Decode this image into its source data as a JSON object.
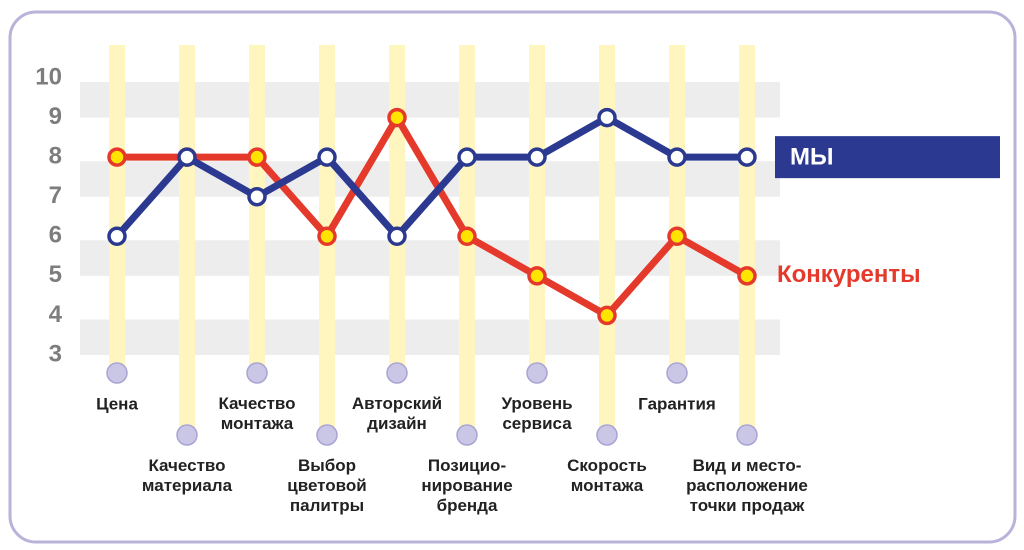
{
  "chart_data": {
    "type": "line",
    "categories": [
      "Цена",
      "Качество\nматериала",
      "Качество\nмонтажа",
      "Выбор\nцветовой\nпалитры",
      "Авторский\nдизайн",
      "Позицио-\nнирование\nбренда",
      "Уровень\nсервиса",
      "Скорость\nмонтажа",
      "Гарантия",
      "Вид и место-\nрасположение\nточки продаж"
    ],
    "series": [
      {
        "name": "МЫ",
        "color": "#2b3990",
        "values": [
          6,
          8,
          7,
          8,
          6,
          8,
          8,
          9,
          8,
          8
        ]
      },
      {
        "name": "Конкуренты",
        "color": "#e53a2b",
        "values": [
          8,
          8,
          8,
          6,
          9,
          6,
          5,
          4,
          6,
          5
        ]
      }
    ],
    "ylim": [
      3,
      10
    ],
    "yticks": [
      3,
      4,
      5,
      6,
      7,
      8,
      9,
      10
    ]
  }
}
